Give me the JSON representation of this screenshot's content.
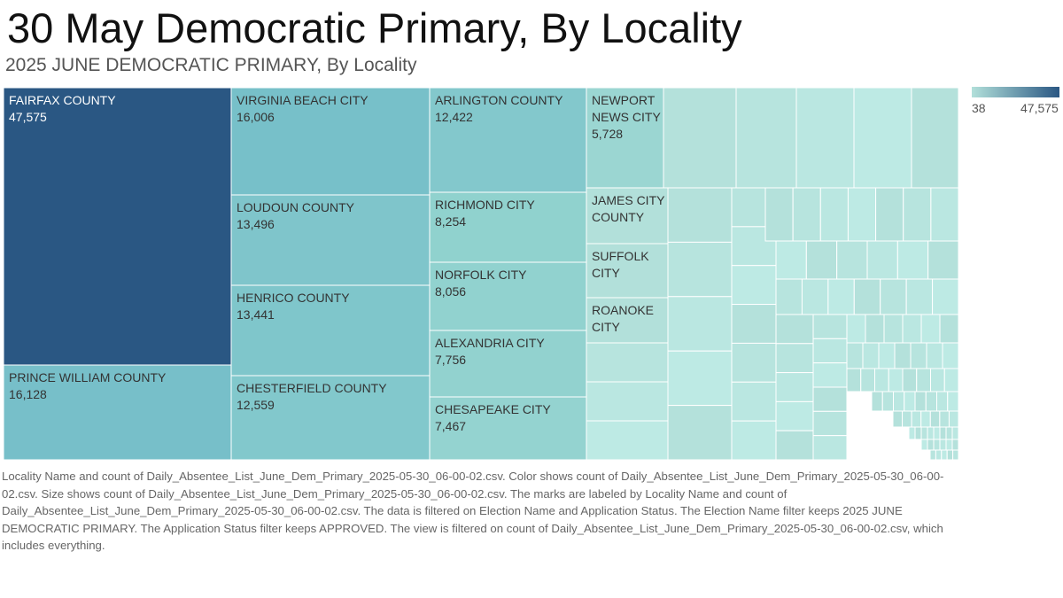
{
  "header": {
    "title": "30 May Democratic Primary, By Locality",
    "subtitle": "2025 JUNE DEMOCRATIC PRIMARY, By Locality"
  },
  "legend": {
    "min_label": "38",
    "max_label": "47,575",
    "color_low": "#b2e0da",
    "color_high": "#2a5783"
  },
  "caption": "Locality Name and count of Daily_Absentee_List_June_Dem_Primary_2025-05-30_06-00-02.csv.  Color shows count of Daily_Absentee_List_June_Dem_Primary_2025-05-30_06-00-02.csv.  Size shows count of Daily_Absentee_List_June_Dem_Primary_2025-05-30_06-00-02.csv.  The marks are labeled by Locality Name and count of Daily_Absentee_List_June_Dem_Primary_2025-05-30_06-00-02.csv. The data is filtered on Election Name and Application Status. The Election Name filter keeps 2025 JUNE DEMOCRATIC PRIMARY. The Application Status filter keeps APPROVED. The view is filtered on count of Daily_Absentee_List_June_Dem_Primary_2025-05-30_06-00-02.csv, which includes everything.",
  "chart_data": {
    "type": "treemap",
    "color_range": [
      38,
      47575
    ],
    "labeled": [
      {
        "name": "FAIRFAX COUNTY",
        "value": 47575
      },
      {
        "name": "PRINCE WILLIAM COUNTY",
        "value": 16128
      },
      {
        "name": "VIRGINIA BEACH CITY",
        "value": 16006
      },
      {
        "name": "LOUDOUN COUNTY",
        "value": 13496
      },
      {
        "name": "HENRICO COUNTY",
        "value": 13441
      },
      {
        "name": "CHESTERFIELD COUNTY",
        "value": 12559
      },
      {
        "name": "ARLINGTON COUNTY",
        "value": 12422
      },
      {
        "name": "RICHMOND CITY",
        "value": 8254
      },
      {
        "name": "NORFOLK CITY",
        "value": 8056
      },
      {
        "name": "ALEXANDRIA CITY",
        "value": 7756
      },
      {
        "name": "CHESAPEAKE CITY",
        "value": 7467
      },
      {
        "name": "NEWPORT NEWS CITY",
        "value": 5728
      },
      {
        "name": "JAMES CITY COUNTY",
        "value": null
      },
      {
        "name": "SUFFOLK CITY",
        "value": null
      },
      {
        "name": "ROANOKE CITY",
        "value": null
      }
    ]
  }
}
